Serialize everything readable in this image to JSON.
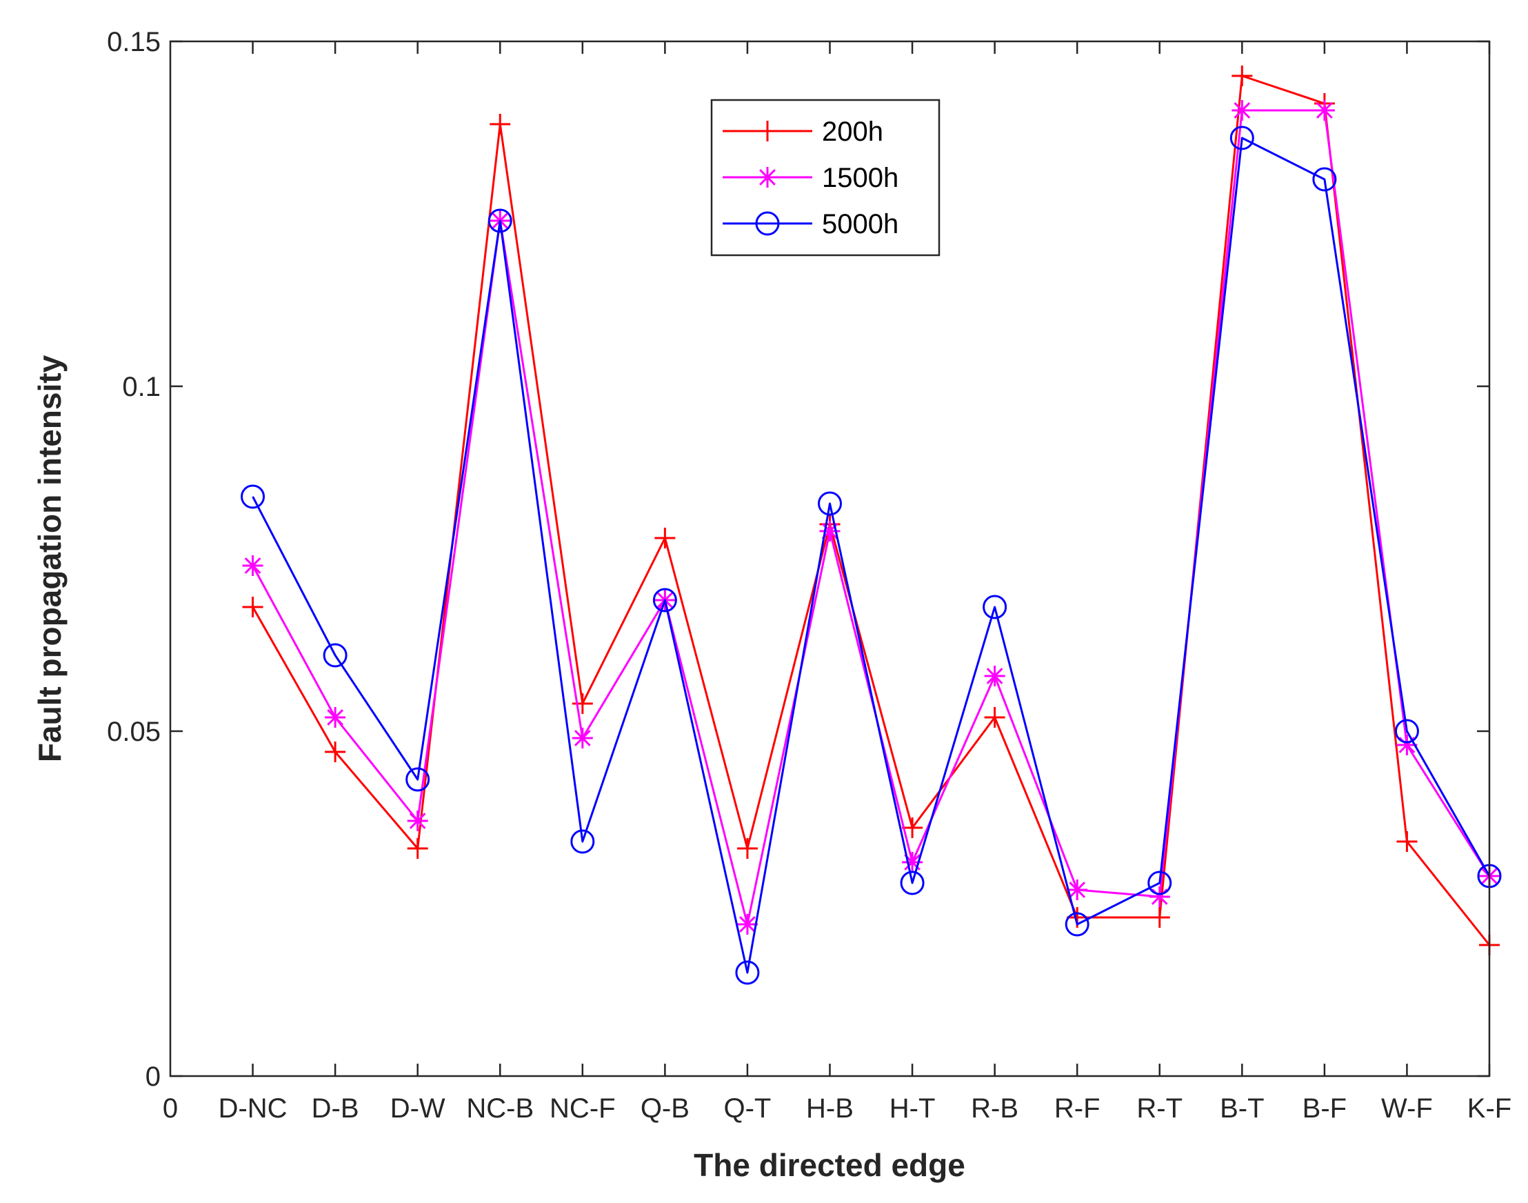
{
  "chart_data": {
    "type": "line",
    "title": "",
    "xlabel": "The directed edge",
    "ylabel": "Fault propagation intensity",
    "ylim": [
      0,
      0.15
    ],
    "yticks": [
      0,
      0.05,
      0.1,
      0.15
    ],
    "ytick_labels": [
      "0",
      "0.05",
      "0.1",
      "0.15"
    ],
    "xlim": [
      0,
      16
    ],
    "x_zero_label": "0",
    "categories": [
      "D-NC",
      "D-B",
      "D-W",
      "NC-B",
      "NC-F",
      "Q-B",
      "Q-T",
      "H-B",
      "H-T",
      "R-B",
      "R-F",
      "R-T",
      "B-T",
      "B-F",
      "W-F",
      "K-F"
    ],
    "legend_position": "top-center",
    "grid": false,
    "series": [
      {
        "name": "200h",
        "color": "#ff0000",
        "marker": "plus",
        "values": [
          0.068,
          0.047,
          0.033,
          0.138,
          0.054,
          0.078,
          0.033,
          0.08,
          0.036,
          0.052,
          0.023,
          0.023,
          0.145,
          0.141,
          0.034,
          0.019
        ]
      },
      {
        "name": "1500h",
        "color": "#ff00ff",
        "marker": "asterisk",
        "values": [
          0.074,
          0.052,
          0.037,
          0.124,
          0.049,
          0.069,
          0.022,
          0.079,
          0.031,
          0.058,
          0.027,
          0.026,
          0.14,
          0.14,
          0.048,
          0.029
        ]
      },
      {
        "name": "5000h",
        "color": "#0000ff",
        "marker": "circle",
        "values": [
          0.084,
          0.061,
          0.043,
          0.124,
          0.034,
          0.069,
          0.015,
          0.083,
          0.028,
          0.068,
          0.022,
          0.028,
          0.136,
          0.13,
          0.05,
          0.029
        ]
      }
    ]
  }
}
